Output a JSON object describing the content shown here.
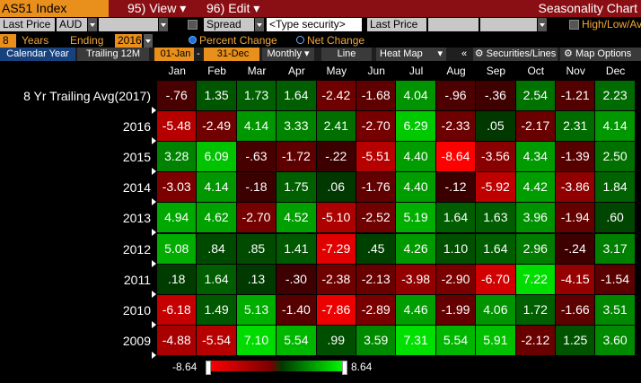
{
  "header": {
    "ticker": "AS51 Index",
    "view_num": "95)",
    "view_label": "View",
    "edit_num": "96)",
    "edit_label": "Edit",
    "title": "Seasonality Chart"
  },
  "row2": {
    "field_label": "Last Price",
    "currency": "AUD",
    "spread_label": "Spread",
    "security_placeholder": "<Type security>",
    "field2_label": "Last Price",
    "hilo_label": "High/Low/Avg"
  },
  "row3": {
    "years": "8",
    "years_label": "Years",
    "ending_label": "Ending",
    "ending_year": "2016",
    "percent_label": "Percent Change",
    "net_label": "Net Change"
  },
  "toolbar": {
    "calendar_year": "Calendar Year",
    "trailing_12m": "Trailing 12M",
    "date_from": "01-Jan",
    "date_sep": "-",
    "date_to": "31-Dec",
    "frequency": "Monthly",
    "line": "Line",
    "heat_map": "Heat Map",
    "collapse": "«",
    "securities_lines": "Securities/Lines",
    "map_options": "Map Options"
  },
  "months": [
    "Jan",
    "Feb",
    "Mar",
    "Apr",
    "May",
    "Jun",
    "Jul",
    "Aug",
    "Sep",
    "Oct",
    "Nov",
    "Dec"
  ],
  "rows": [
    {
      "label": "8 Yr Trailing Avg(2017)",
      "values": [
        "-.76",
        "1.35",
        "1.73",
        "1.64",
        "-2.42",
        "-1.68",
        "4.04",
        "-.96",
        "-.36",
        "2.54",
        "-1.21",
        "2.23"
      ]
    },
    {
      "label": "2016",
      "values": [
        "-5.48",
        "-2.49",
        "4.14",
        "3.33",
        "2.41",
        "-2.70",
        "6.29",
        "-2.33",
        ".05",
        "-2.17",
        "2.31",
        "4.14"
      ]
    },
    {
      "label": "2015",
      "values": [
        "3.28",
        "6.09",
        "-.63",
        "-1.72",
        "-.22",
        "-5.51",
        "4.40",
        "-8.64",
        "-3.56",
        "4.34",
        "-1.39",
        "2.50"
      ]
    },
    {
      "label": "2014",
      "values": [
        "-3.03",
        "4.14",
        "-.18",
        "1.75",
        ".06",
        "-1.76",
        "4.40",
        "-.12",
        "-5.92",
        "4.42",
        "-3.86",
        "1.84"
      ]
    },
    {
      "label": "2013",
      "values": [
        "4.94",
        "4.62",
        "-2.70",
        "4.52",
        "-5.10",
        "-2.52",
        "5.19",
        "1.64",
        "1.63",
        "3.96",
        "-1.94",
        ".60"
      ]
    },
    {
      "label": "2012",
      "values": [
        "5.08",
        ".84",
        ".85",
        "1.41",
        "-7.29",
        ".45",
        "4.26",
        "1.10",
        "1.64",
        "2.96",
        "-.24",
        "3.17"
      ]
    },
    {
      "label": "2011",
      "values": [
        ".18",
        "1.64",
        ".13",
        "-.30",
        "-2.38",
        "-2.13",
        "-3.98",
        "-2.90",
        "-6.70",
        "7.22",
        "-4.15",
        "-1.54"
      ]
    },
    {
      "label": "2010",
      "values": [
        "-6.18",
        "1.49",
        "5.13",
        "-1.40",
        "-7.86",
        "-2.89",
        "4.46",
        "-1.99",
        "4.06",
        "1.72",
        "-1.66",
        "3.51"
      ]
    },
    {
      "label": "2009",
      "values": [
        "-4.88",
        "-5.54",
        "7.10",
        "5.54",
        ".99",
        "3.59",
        "7.31",
        "5.54",
        "5.91",
        "-2.12",
        "1.25",
        "3.60"
      ]
    }
  ],
  "legend": {
    "min": "-8.64",
    "max": "8.64"
  },
  "colors": {
    "accent_orange": "#e98f1c",
    "header_red": "#8a0f14",
    "positive": "#00ff00",
    "negative": "#ff0000"
  }
}
